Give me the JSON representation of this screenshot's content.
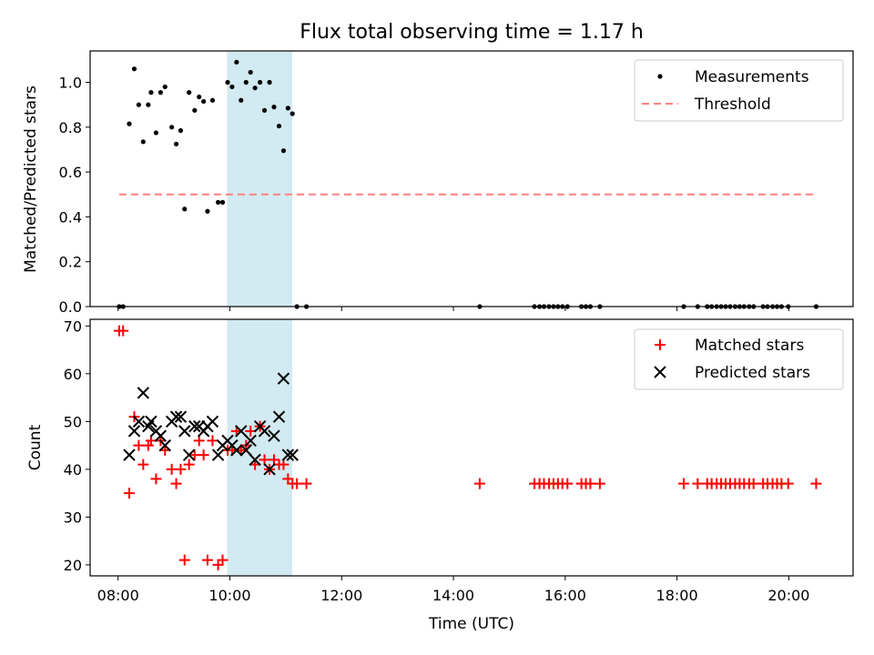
{
  "chart_data": {
    "type": "scatter",
    "title": "Flux total observing time = 1.17 h",
    "x_unit": "hours UTC",
    "shaded_interval": [
      "09:57",
      "11:07"
    ],
    "shade_color": "#add8e6",
    "panels": [
      {
        "id": "ratio",
        "ylabel": "Matched/Predicted stars",
        "xlim": [
          7.5,
          21.15
        ],
        "ylim": [
          0.0,
          1.14
        ],
        "yticks": [
          "0.0",
          "0.2",
          "0.4",
          "0.6",
          "0.8",
          "1.0"
        ],
        "yticks_values": [
          0.0,
          0.2,
          0.4,
          0.6,
          0.8,
          1.0
        ],
        "legend_position": "upper right",
        "series": [
          {
            "name": "Measurements",
            "marker": "dot",
            "color": "#000000",
            "points": [
              [
                8.02,
                0.0
              ],
              [
                8.09,
                0.0
              ],
              [
                8.2,
                0.815
              ],
              [
                8.29,
                1.06
              ],
              [
                8.37,
                0.9
              ],
              [
                8.45,
                0.735
              ],
              [
                8.54,
                0.9
              ],
              [
                8.59,
                0.955
              ],
              [
                8.68,
                0.775
              ],
              [
                8.76,
                0.955
              ],
              [
                8.84,
                0.98
              ],
              [
                8.96,
                0.8
              ],
              [
                9.04,
                0.725
              ],
              [
                9.12,
                0.785
              ],
              [
                9.19,
                0.435
              ],
              [
                9.27,
                0.955
              ],
              [
                9.37,
                0.875
              ],
              [
                9.45,
                0.935
              ],
              [
                9.53,
                0.915
              ],
              [
                9.6,
                0.425
              ],
              [
                9.69,
                0.92
              ],
              [
                9.79,
                0.465
              ],
              [
                9.87,
                0.465
              ],
              [
                9.96,
                1.0
              ],
              [
                10.04,
                0.98
              ],
              [
                10.12,
                1.09
              ],
              [
                10.2,
                0.92
              ],
              [
                10.29,
                1.0
              ],
              [
                10.37,
                1.045
              ],
              [
                10.45,
                0.975
              ],
              [
                10.54,
                1.0
              ],
              [
                10.62,
                0.875
              ],
              [
                10.71,
                1.0
              ],
              [
                10.79,
                0.89
              ],
              [
                10.88,
                0.805
              ],
              [
                10.96,
                0.695
              ],
              [
                11.04,
                0.885
              ],
              [
                11.12,
                0.86
              ],
              [
                11.2,
                0.0
              ],
              [
                11.37,
                0.0
              ],
              [
                14.47,
                0.0
              ],
              [
                15.45,
                0.0
              ],
              [
                15.54,
                0.0
              ],
              [
                15.62,
                0.0
              ],
              [
                15.71,
                0.0
              ],
              [
                15.79,
                0.0
              ],
              [
                15.87,
                0.0
              ],
              [
                15.95,
                0.0
              ],
              [
                16.04,
                0.0
              ],
              [
                16.29,
                0.0
              ],
              [
                16.37,
                0.0
              ],
              [
                16.45,
                0.0
              ],
              [
                16.62,
                0.0
              ],
              [
                18.12,
                0.0
              ],
              [
                18.37,
                0.0
              ],
              [
                18.54,
                0.0
              ],
              [
                18.62,
                0.0
              ],
              [
                18.71,
                0.0
              ],
              [
                18.79,
                0.0
              ],
              [
                18.87,
                0.0
              ],
              [
                18.95,
                0.0
              ],
              [
                19.04,
                0.0
              ],
              [
                19.12,
                0.0
              ],
              [
                19.2,
                0.0
              ],
              [
                19.29,
                0.0
              ],
              [
                19.37,
                0.0
              ],
              [
                19.54,
                0.0
              ],
              [
                19.62,
                0.0
              ],
              [
                19.71,
                0.0
              ],
              [
                19.79,
                0.0
              ],
              [
                19.87,
                0.0
              ],
              [
                19.99,
                0.0
              ],
              [
                20.49,
                0.0
              ]
            ]
          },
          {
            "name": "Threshold",
            "marker": "dashed-line",
            "color": "#ff7f7f",
            "points": [
              [
                8.02,
                0.5
              ],
              [
                20.49,
                0.5
              ]
            ]
          }
        ]
      },
      {
        "id": "counts",
        "ylabel": "Count",
        "xlabel": "Time (UTC)",
        "xlim": [
          7.5,
          21.15
        ],
        "ylim": [
          17.7,
          71.4
        ],
        "yticks": [
          "20",
          "30",
          "40",
          "50",
          "60",
          "70"
        ],
        "yticks_values": [
          20,
          30,
          40,
          50,
          60,
          70
        ],
        "xticks": [
          "08:00",
          "10:00",
          "12:00",
          "14:00",
          "16:00",
          "18:00",
          "20:00"
        ],
        "xticks_values": [
          8,
          10,
          12,
          14,
          16,
          18,
          20
        ],
        "legend_position": "upper right",
        "series": [
          {
            "name": "Matched stars",
            "marker": "plus",
            "color": "#ff0000",
            "points": [
              [
                8.02,
                69
              ],
              [
                8.09,
                69
              ],
              [
                8.2,
                35
              ],
              [
                8.29,
                51
              ],
              [
                8.37,
                45
              ],
              [
                8.45,
                41
              ],
              [
                8.54,
                45
              ],
              [
                8.59,
                46
              ],
              [
                8.68,
                38
              ],
              [
                8.76,
                46
              ],
              [
                8.84,
                44
              ],
              [
                8.96,
                40
              ],
              [
                9.04,
                37
              ],
              [
                9.12,
                40
              ],
              [
                9.19,
                21
              ],
              [
                9.27,
                41
              ],
              [
                9.37,
                43
              ],
              [
                9.45,
                46
              ],
              [
                9.53,
                43
              ],
              [
                9.6,
                21
              ],
              [
                9.69,
                46
              ],
              [
                9.79,
                20
              ],
              [
                9.87,
                21
              ],
              [
                9.96,
                44
              ],
              [
                10.04,
                44
              ],
              [
                10.12,
                48
              ],
              [
                10.2,
                44
              ],
              [
                10.29,
                45
              ],
              [
                10.37,
                48
              ],
              [
                10.45,
                41
              ],
              [
                10.54,
                49
              ],
              [
                10.62,
                42
              ],
              [
                10.71,
                40
              ],
              [
                10.79,
                42
              ],
              [
                10.88,
                41
              ],
              [
                10.96,
                41
              ],
              [
                11.04,
                38
              ],
              [
                11.12,
                37
              ],
              [
                11.2,
                37
              ],
              [
                11.37,
                37
              ],
              [
                14.47,
                37
              ],
              [
                15.45,
                37
              ],
              [
                15.54,
                37
              ],
              [
                15.62,
                37
              ],
              [
                15.71,
                37
              ],
              [
                15.79,
                37
              ],
              [
                15.87,
                37
              ],
              [
                15.95,
                37
              ],
              [
                16.04,
                37
              ],
              [
                16.29,
                37
              ],
              [
                16.37,
                37
              ],
              [
                16.45,
                37
              ],
              [
                16.62,
                37
              ],
              [
                18.12,
                37
              ],
              [
                18.37,
                37
              ],
              [
                18.54,
                37
              ],
              [
                18.62,
                37
              ],
              [
                18.71,
                37
              ],
              [
                18.79,
                37
              ],
              [
                18.87,
                37
              ],
              [
                18.95,
                37
              ],
              [
                19.04,
                37
              ],
              [
                19.12,
                37
              ],
              [
                19.2,
                37
              ],
              [
                19.29,
                37
              ],
              [
                19.37,
                37
              ],
              [
                19.54,
                37
              ],
              [
                19.62,
                37
              ],
              [
                19.71,
                37
              ],
              [
                19.79,
                37
              ],
              [
                19.87,
                37
              ],
              [
                19.99,
                37
              ],
              [
                20.49,
                37
              ]
            ]
          },
          {
            "name": "Predicted stars",
            "marker": "x",
            "color": "#000000",
            "points": [
              [
                8.2,
                43
              ],
              [
                8.29,
                48
              ],
              [
                8.37,
                50
              ],
              [
                8.45,
                56
              ],
              [
                8.54,
                49
              ],
              [
                8.59,
                50
              ],
              [
                8.68,
                48
              ],
              [
                8.76,
                47
              ],
              [
                8.84,
                45
              ],
              [
                8.96,
                50
              ],
              [
                9.04,
                51
              ],
              [
                9.12,
                51
              ],
              [
                9.19,
                48
              ],
              [
                9.27,
                43
              ],
              [
                9.37,
                49
              ],
              [
                9.45,
                49
              ],
              [
                9.53,
                48
              ],
              [
                9.6,
                49
              ],
              [
                9.69,
                50
              ],
              [
                9.79,
                43
              ],
              [
                9.87,
                45
              ],
              [
                9.96,
                46
              ],
              [
                10.04,
                45
              ],
              [
                10.12,
                44
              ],
              [
                10.2,
                48
              ],
              [
                10.29,
                44
              ],
              [
                10.37,
                46
              ],
              [
                10.45,
                42
              ],
              [
                10.54,
                49
              ],
              [
                10.62,
                48
              ],
              [
                10.71,
                40
              ],
              [
                10.79,
                47
              ],
              [
                10.88,
                51
              ],
              [
                10.96,
                59
              ],
              [
                11.04,
                43
              ],
              [
                11.12,
                43
              ]
            ]
          }
        ]
      }
    ]
  }
}
